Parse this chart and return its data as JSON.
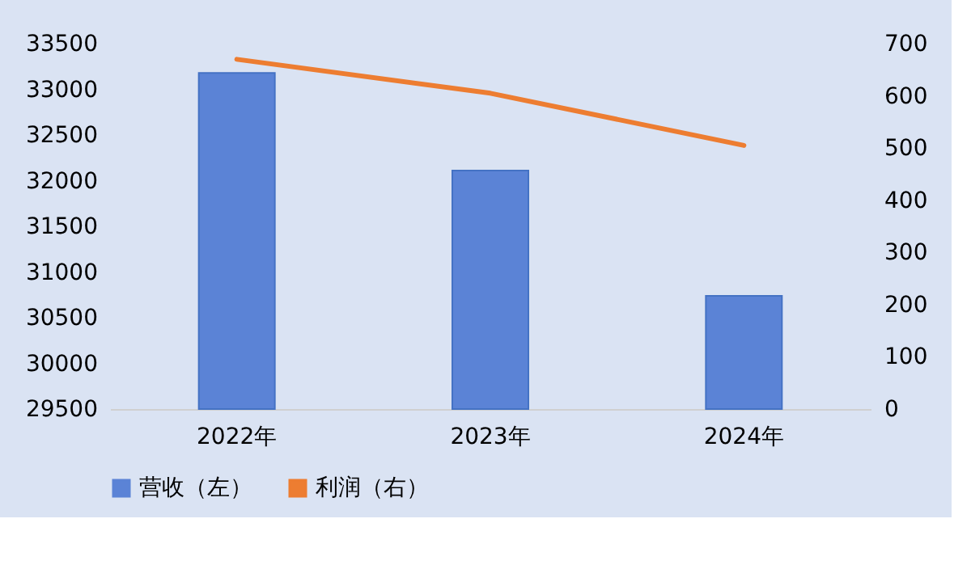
{
  "chart_data": {
    "type": "bar",
    "categories": [
      "2022年",
      "2023年",
      "2024年"
    ],
    "series": [
      {
        "name": "营收（左）",
        "color": "#5b83d6",
        "values": [
          33180,
          32110,
          30740
        ]
      },
      {
        "name": "利润（右）",
        "type": "line",
        "axis": "y2",
        "color": "#ed7d31",
        "values": [
          670,
          605,
          505
        ]
      }
    ],
    "ylim": [
      29500,
      33500
    ],
    "yticks": [
      29500,
      30000,
      30500,
      31000,
      31500,
      32000,
      32500,
      33000,
      33500
    ],
    "y2lim": [
      0,
      700
    ],
    "y2ticks": [
      0,
      100,
      200,
      300,
      400,
      500,
      600,
      700
    ],
    "grid": false,
    "legend": "bottom"
  }
}
